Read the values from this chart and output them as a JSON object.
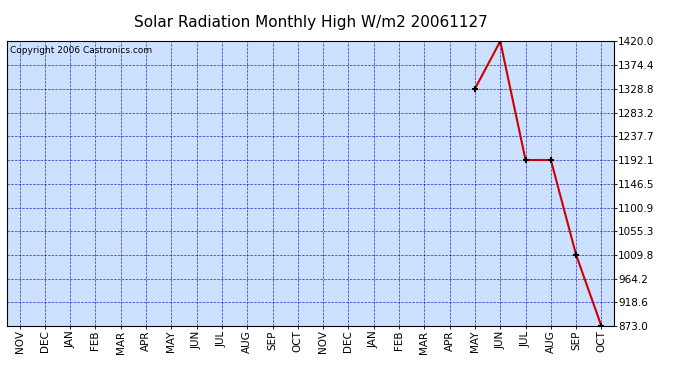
{
  "title": "Solar Radiation Monthly High W/m2 20061127",
  "copyright": "Copyright 2006 Castronics.com",
  "x_labels": [
    "NOV",
    "DEC",
    "JAN",
    "FEB",
    "MAR",
    "APR",
    "MAY",
    "JUN",
    "JUL",
    "AUG",
    "SEP",
    "OCT",
    "NOV",
    "DEC",
    "JAN",
    "FEB",
    "MAR",
    "APR",
    "MAY",
    "JUN",
    "JUL",
    "AUG",
    "SEP",
    "OCT"
  ],
  "y_ticks": [
    873.0,
    918.6,
    964.2,
    1009.8,
    1055.3,
    1100.9,
    1146.5,
    1192.1,
    1237.7,
    1283.2,
    1328.8,
    1374.4,
    1420.0
  ],
  "ylim": [
    873.0,
    1420.0
  ],
  "data_x_indices": [
    18,
    19,
    20,
    21,
    22,
    23
  ],
  "data_y_values": [
    1328.8,
    1420.0,
    1192.1,
    1192.1,
    1009.8,
    873.0
  ],
  "line_color": "#cc0000",
  "marker_color": "#000000",
  "marker_size": 5,
  "grid_color": "#0000bb",
  "bg_color": "#cce0ff",
  "title_fontsize": 11,
  "copyright_fontsize": 6.5,
  "tick_label_fontsize": 7.5
}
